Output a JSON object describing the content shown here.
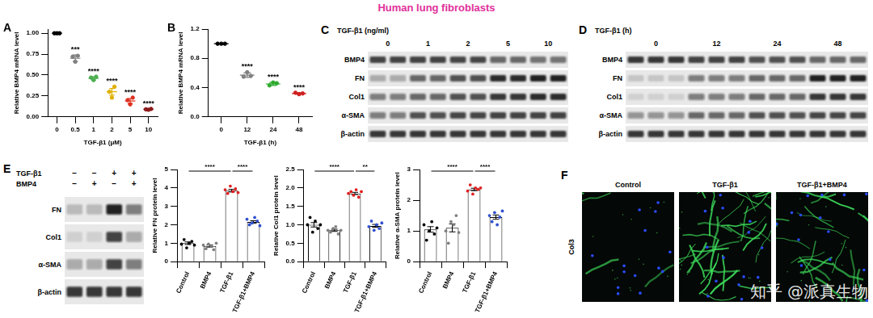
{
  "title": "Human lung fibroblasts",
  "watermark": "知乎 @派真生物",
  "chart_data": [
    {
      "panel": "A",
      "type": "scatter",
      "categories": [
        "0",
        "0.5",
        "1",
        "2",
        "5",
        "10"
      ],
      "x_label": "TGF-β1 (μM)",
      "y_label": "Relative BMP4 mRNA level",
      "values": [
        [
          1,
          1,
          1
        ],
        [
          0.72,
          0.66,
          0.73
        ],
        [
          0.47,
          0.44,
          0.48
        ],
        [
          0.3,
          0.23,
          0.36
        ],
        [
          0.2,
          0.15,
          0.23
        ],
        [
          0.09,
          0.085,
          0.095
        ]
      ],
      "means": [
        1,
        0.7,
        0.46,
        0.3,
        0.19,
        0.09
      ],
      "errors": [
        0,
        0.04,
        0.02,
        0.04,
        0.03,
        0.005
      ],
      "colors": [
        "#000000",
        "#808080",
        "#4caf50",
        "#e0b000",
        "#e03020",
        "#8b1a1a"
      ],
      "annotations": [
        null,
        "***",
        "****",
        "****",
        "****",
        "****"
      ],
      "ylim": [
        0,
        1.05
      ],
      "yticks": [
        {
          "value": 0,
          "label": "0.00"
        },
        {
          "value": 0.25,
          "label": "0.25"
        },
        {
          "value": 0.5,
          "label": "0.50"
        },
        {
          "value": 0.75,
          "label": "0.75"
        },
        {
          "value": 1,
          "label": "1.00"
        }
      ],
      "grid": false
    },
    {
      "panel": "B",
      "type": "scatter",
      "categories": [
        "0",
        "12",
        "24",
        "48"
      ],
      "x_label": "TGF-β1 (h)",
      "y_label": "Relative BMP4 mRNA level",
      "values": [
        [
          1,
          1,
          1
        ],
        [
          0.55,
          0.61,
          0.56
        ],
        [
          0.43,
          0.47,
          0.46
        ],
        [
          0.33,
          0.31,
          0.32
        ]
      ],
      "means": [
        1,
        0.57,
        0.45,
        0.32
      ],
      "errors": [
        0,
        0.03,
        0.02,
        0.01
      ],
      "colors": [
        "#000000",
        "#808080",
        "#2eaa2e",
        "#d02020"
      ],
      "annotations": [
        null,
        "****",
        "****",
        "****"
      ],
      "ylim": [
        0,
        1.2
      ],
      "yticks": [
        {
          "value": 0,
          "label": "0.0"
        },
        0.4,
        0.8,
        1.2
      ],
      "grid": false
    },
    {
      "type": "bar",
      "categories": [
        "Control",
        "BMP4",
        "TGF-β1",
        "TGF-β1+BMP4"
      ],
      "y_label": "Relative FN protein level",
      "values": [
        1.0,
        0.85,
        3.85,
        2.15
      ],
      "errors": [
        0.07,
        0.06,
        0.07,
        0.07
      ],
      "points": [
        [
          0.95,
          1.2,
          0.75,
          1.0,
          1.1,
          0.9
        ],
        [
          0.9,
          0.7,
          0.95,
          0.85,
          0.65,
          1.0
        ],
        [
          3.9,
          3.7,
          4.1,
          3.8,
          3.95,
          3.75
        ],
        [
          2.3,
          2.0,
          2.1,
          2.4,
          2.2,
          1.95
        ]
      ],
      "color": "#ffffff",
      "colors": [
        "#000000",
        "#808080",
        "#e02020",
        "#3050d0"
      ],
      "comparisons": [
        {
          "from": "Control",
          "to": "TGF-β1",
          "label": "****"
        },
        {
          "from": "TGF-β1",
          "to": "TGF-β1+BMP4",
          "label": "****"
        }
      ],
      "ylim": [
        0,
        5
      ],
      "yticks": [
        0,
        1,
        2,
        3,
        4,
        5
      ],
      "grid": false
    },
    {
      "type": "bar",
      "categories": [
        "Control",
        "BMP4",
        "TGF-β1",
        "TGF-β1+BMP4"
      ],
      "y_label": "Relative Col1 protein level",
      "values": [
        1.0,
        0.85,
        1.85,
        0.97
      ],
      "errors": [
        0.06,
        0.03,
        0.03,
        0.04
      ],
      "points": [
        [
          1.0,
          1.2,
          0.8,
          1.1,
          0.9,
          1.0
        ],
        [
          0.85,
          0.8,
          0.9,
          0.95,
          0.75,
          0.85
        ],
        [
          1.85,
          1.9,
          1.8,
          1.95,
          1.75,
          1.9
        ],
        [
          0.95,
          1.1,
          0.85,
          1.0,
          0.9,
          1.05
        ]
      ],
      "color": "#ffffff",
      "colors": [
        "#000000",
        "#808080",
        "#e02020",
        "#3050d0"
      ],
      "comparisons": [
        {
          "from": "Control",
          "to": "TGF-β1",
          "label": "****"
        },
        {
          "from": "TGF-β1",
          "to": "TGF-β1+BMP4",
          "label": "**"
        }
      ],
      "ylim": [
        0,
        2.5
      ],
      "yticks": [
        {
          "value": 0,
          "label": "0.0"
        },
        {
          "value": 0.5,
          "label": "0.5"
        },
        {
          "value": 1,
          "label": "1.0"
        },
        {
          "value": 1.5,
          "label": "1.5"
        },
        {
          "value": 2,
          "label": "2.0"
        },
        {
          "value": 2.5,
          "label": "2.5"
        }
      ],
      "grid": false
    },
    {
      "type": "bar",
      "categories": [
        "Control",
        "BMP4",
        "TGF-β1",
        "TGF-β1+BMP4"
      ],
      "y_label": "Relative α-SMA protein level",
      "values": [
        1.05,
        1.1,
        2.35,
        1.45
      ],
      "errors": [
        0.09,
        0.13,
        0.04,
        0.07
      ],
      "points": [
        [
          1.2,
          0.7,
          1.0,
          1.3,
          0.9,
          1.1
        ],
        [
          1.0,
          0.6,
          1.3,
          1.2,
          1.5,
          0.95
        ],
        [
          2.3,
          2.5,
          2.2,
          2.4,
          2.35,
          2.4
        ],
        [
          1.5,
          1.3,
          1.6,
          1.2,
          1.45,
          1.65
        ]
      ],
      "color": "#ffffff",
      "colors": [
        "#000000",
        "#808080",
        "#e02020",
        "#3050d0"
      ],
      "comparisons": [
        {
          "from": "Control",
          "to": "TGF-β1",
          "label": "****"
        },
        {
          "from": "TGF-β1",
          "to": "TGF-β1+BMP4",
          "label": "****"
        }
      ],
      "ylim": [
        0,
        3
      ],
      "yticks": [
        0,
        1,
        2,
        3
      ],
      "grid": false
    }
  ],
  "blots": [
    {
      "panel": "C",
      "treatment": "TGF-β1 (ng/ml)",
      "groups": [
        "0",
        "1",
        "2",
        "5",
        "10"
      ],
      "lanes_per_group": 2,
      "rows": [
        "BMP4",
        "FN",
        "Col1",
        "α-SMA",
        "β-actin"
      ],
      "intensity": [
        [
          0.8,
          0.8,
          0.75,
          0.6,
          0.55
        ],
        [
          0.3,
          0.6,
          0.7,
          0.9,
          0.95
        ],
        [
          0.5,
          0.6,
          0.7,
          0.85,
          0.9
        ],
        [
          0.5,
          0.7,
          0.75,
          0.8,
          0.8
        ],
        [
          0.85,
          0.85,
          0.85,
          0.85,
          0.85
        ]
      ]
    },
    {
      "panel": "D",
      "treatment": "TGF-β1 (h)",
      "groups": [
        "0",
        "12",
        "24",
        "48"
      ],
      "lanes_per_group": 3,
      "rows": [
        "BMP4",
        "FN",
        "Col1",
        "α-SMA",
        "β-actin"
      ],
      "intensity": [
        [
          0.85,
          0.8,
          0.7,
          0.6
        ],
        [
          0.15,
          0.5,
          0.6,
          0.95
        ],
        [
          0.1,
          0.5,
          0.6,
          0.85
        ],
        [
          0.4,
          0.6,
          0.7,
          0.75
        ],
        [
          0.85,
          0.85,
          0.85,
          0.85
        ]
      ]
    },
    {
      "panel": "E",
      "conditions": [
        {
          "label": "TGF-β1",
          "signs": [
            "−",
            "−",
            "+",
            "+"
          ]
        },
        {
          "label": "BMP4",
          "signs": [
            "−",
            "+",
            "−",
            "+"
          ]
        }
      ],
      "rows": [
        "FN",
        "Col1",
        "α-SMA",
        "β-actin"
      ],
      "intensity": [
        [
          0.2,
          0.2,
          0.95,
          0.5
        ],
        [
          0.1,
          0.1,
          0.8,
          0.3
        ],
        [
          0.3,
          0.3,
          0.8,
          0.5
        ],
        [
          0.85,
          0.85,
          0.85,
          0.85
        ]
      ]
    }
  ],
  "images": {
    "panel": "F",
    "stain": "Col3",
    "conditions": [
      "Control",
      "TGF-β1",
      "TGF-β1+BMP4"
    ],
    "fluorescence": [
      0.1,
      1.0,
      0.6
    ]
  }
}
